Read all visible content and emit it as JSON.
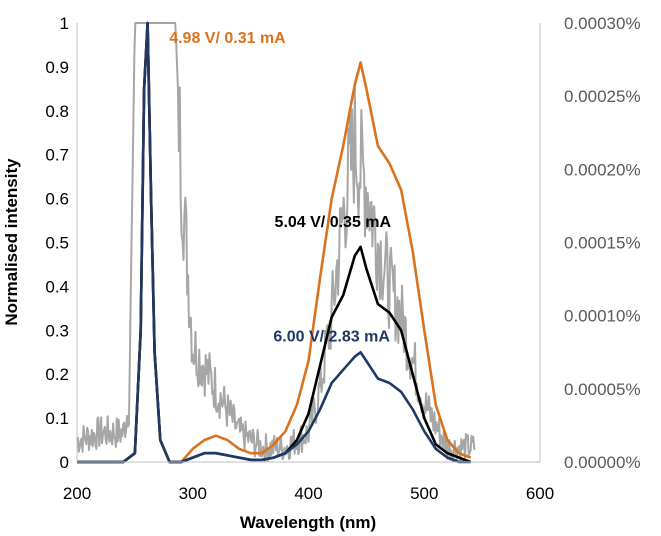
{
  "chart_data": {
    "type": "line",
    "xlabel": "Wavelength (nm)",
    "ylabel": "Normalised intensity",
    "xlim": [
      200,
      600
    ],
    "ylim": [
      0,
      1
    ],
    "y2lim": [
      0,
      0.0003
    ],
    "x_ticks": [
      "200",
      "300",
      "400",
      "500",
      "600"
    ],
    "y_ticks": [
      "0",
      "0.1",
      "0.2",
      "0.3",
      "0.4",
      "0.5",
      "0.6",
      "0.7",
      "0.8",
      "0.9",
      "1"
    ],
    "y2_ticks": [
      "0.00000%",
      "0.00005%",
      "0.00010%",
      "0.00015%",
      "0.00020%",
      "0.00025%",
      "0.00030%"
    ],
    "grid": false,
    "legend": "none",
    "annotations": [
      {
        "text": "4.98 V/ 0.31 mA",
        "color": "#D9731F",
        "x": 330,
        "y": 0.955
      },
      {
        "text": "5.04 V/ 0.35 mA",
        "color": "#000000",
        "x": 421,
        "y": 0.535
      },
      {
        "text": "6.00 V/ 2.83 mA",
        "color": "#1F3864",
        "x": 420,
        "y": 0.275
      }
    ],
    "series": [
      {
        "color": "#A6A6A6",
        "axis": "right",
        "noisy": true,
        "x": [
          200,
          220,
          240,
          245,
          250,
          255,
          260,
          270,
          280,
          285,
          290,
          300,
          320,
          340,
          360,
          380,
          400,
          410,
          420,
          430,
          440,
          445,
          450,
          460,
          470,
          480,
          490,
          500,
          520,
          540,
          544
        ],
        "y": [
          1.5e-05,
          2e-05,
          2e-05,
          4e-05,
          0.0003,
          0.0003,
          0.0003,
          0.0003,
          0.0003,
          0.0003,
          0.0002,
          8e-05,
          5e-05,
          2e-05,
          1e-05,
          1e-05,
          2e-05,
          5e-05,
          0.0001,
          0.00017,
          0.00022,
          0.0002,
          0.00019,
          0.00015,
          0.00012,
          0.0001,
          7e-05,
          4e-05,
          1e-05,
          1e-05,
          1e-05
        ]
      },
      {
        "color": "#D9731F",
        "axis": "left",
        "x": [
          200,
          240,
          250,
          255,
          258,
          261,
          264,
          267,
          272,
          280,
          290,
          300,
          310,
          320,
          330,
          340,
          350,
          360,
          370,
          380,
          390,
          400,
          410,
          420,
          430,
          440,
          445,
          450,
          460,
          470,
          480,
          490,
          500,
          510,
          520,
          530,
          540
        ],
        "y": [
          0.0,
          0.0,
          0.02,
          0.3,
          0.85,
          1.0,
          0.6,
          0.25,
          0.05,
          0.0,
          0.0,
          0.03,
          0.05,
          0.06,
          0.05,
          0.03,
          0.02,
          0.02,
          0.04,
          0.07,
          0.13,
          0.23,
          0.42,
          0.6,
          0.72,
          0.86,
          0.91,
          0.85,
          0.72,
          0.68,
          0.62,
          0.48,
          0.3,
          0.13,
          0.05,
          0.02,
          0.01
        ]
      },
      {
        "color": "#000000",
        "axis": "left",
        "x": [
          200,
          240,
          250,
          255,
          258,
          261,
          264,
          267,
          272,
          280,
          290,
          300,
          310,
          320,
          330,
          340,
          350,
          360,
          370,
          380,
          390,
          400,
          410,
          420,
          430,
          440,
          445,
          450,
          460,
          470,
          480,
          490,
          500,
          510,
          520,
          530,
          540
        ],
        "y": [
          0.0,
          0.0,
          0.02,
          0.3,
          0.85,
          1.0,
          0.6,
          0.25,
          0.05,
          0.0,
          0.0,
          0.01,
          0.02,
          0.02,
          0.015,
          0.01,
          0.005,
          0.005,
          0.01,
          0.02,
          0.05,
          0.11,
          0.22,
          0.33,
          0.38,
          0.47,
          0.49,
          0.44,
          0.36,
          0.34,
          0.3,
          0.2,
          0.1,
          0.04,
          0.02,
          0.01,
          0.0
        ]
      },
      {
        "color": "#1F3864",
        "axis": "left",
        "x": [
          200,
          240,
          250,
          255,
          258,
          261,
          264,
          267,
          272,
          280,
          290,
          300,
          310,
          320,
          330,
          340,
          350,
          360,
          370,
          380,
          390,
          400,
          410,
          420,
          430,
          440,
          445,
          450,
          460,
          470,
          480,
          490,
          500,
          510,
          520,
          530,
          540
        ],
        "y": [
          0.0,
          0.0,
          0.02,
          0.3,
          0.85,
          1.0,
          0.6,
          0.25,
          0.05,
          0.0,
          0.0,
          0.01,
          0.02,
          0.02,
          0.015,
          0.01,
          0.005,
          0.005,
          0.01,
          0.02,
          0.04,
          0.07,
          0.12,
          0.18,
          0.21,
          0.24,
          0.25,
          0.23,
          0.19,
          0.18,
          0.16,
          0.12,
          0.07,
          0.03,
          0.01,
          0.0,
          0.0
        ]
      }
    ]
  }
}
